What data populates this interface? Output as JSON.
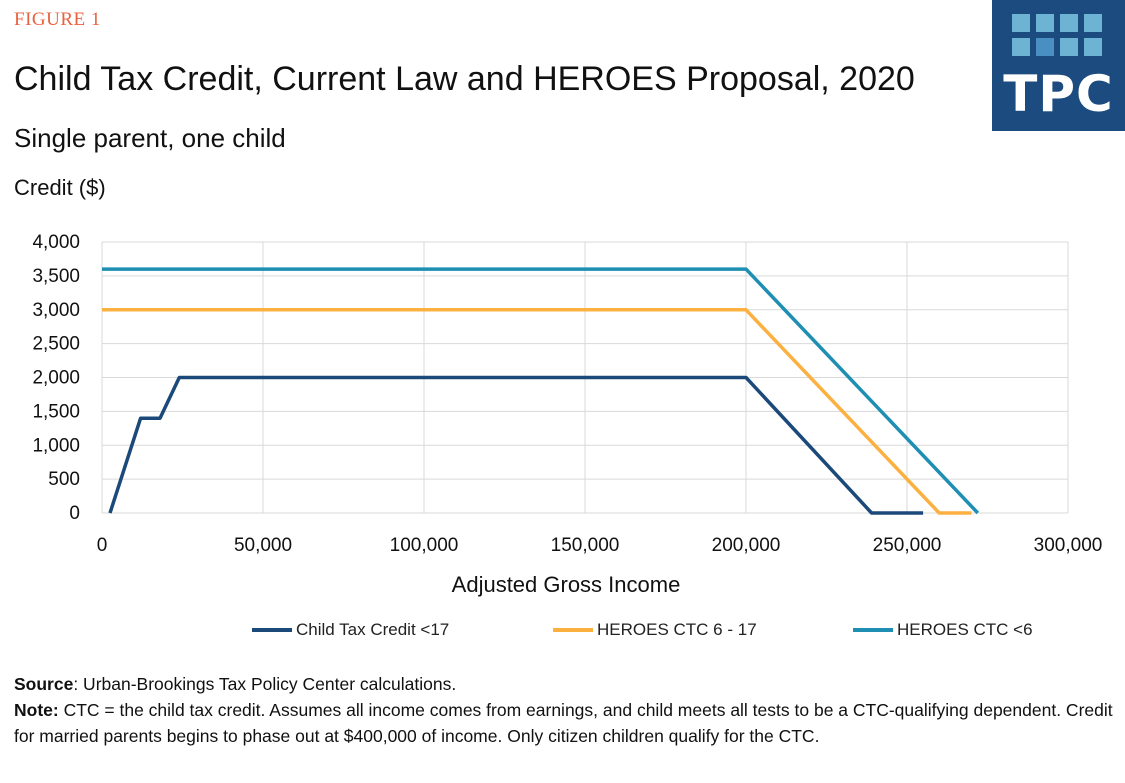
{
  "figure_label": "FIGURE 1",
  "logo": {
    "text": "TPC",
    "colors": {
      "background": "#1c4b80",
      "square_light": "#6cb3d4",
      "square_mid": "#4a8fc1"
    }
  },
  "notes": {
    "source_label": "Source",
    "source_text": ": Urban-Brookings Tax Policy Center calculations.",
    "note_label": "Note:",
    "note_text": " CTC = the child tax credit. Assumes all income comes from earnings, and child meets all tests to be a CTC-qualifying dependent. Credit for married parents begins to phase out at $400,000 of income. Only citizen children qualify for the CTC."
  },
  "chart_data": {
    "type": "line",
    "title": "Child Tax Credit, Current Law and HEROES Proposal, 2020",
    "subtitle": "Single parent, one child",
    "ylabel": "Credit ($)",
    "xlabel": "Adjusted Gross Income",
    "xlim": [
      0,
      300000
    ],
    "ylim": [
      0,
      4000
    ],
    "xticks": [
      0,
      50000,
      100000,
      150000,
      200000,
      250000,
      300000
    ],
    "xtick_labels": [
      "0",
      "50,000",
      "100,000",
      "150,000",
      "200,000",
      "250,000",
      "300,000"
    ],
    "yticks": [
      0,
      500,
      1000,
      1500,
      2000,
      2500,
      3000,
      3500,
      4000
    ],
    "ytick_labels": [
      "0",
      "500",
      "1,000",
      "1,500",
      "2,000",
      "2,500",
      "3,000",
      "3,500",
      "4,000"
    ],
    "grid": true,
    "legend_position": "bottom",
    "series": [
      {
        "name": "Child Tax Credit <17",
        "color": "#1b4a7a",
        "points": [
          [
            2500,
            0
          ],
          [
            12000,
            1400
          ],
          [
            18000,
            1400
          ],
          [
            24000,
            2000
          ],
          [
            200000,
            2000
          ],
          [
            239000,
            0
          ],
          [
            255000,
            0
          ]
        ]
      },
      {
        "name": "HEROES CTC 6 - 17",
        "color": "#fbb040",
        "points": [
          [
            0,
            3000
          ],
          [
            200000,
            3000
          ],
          [
            260000,
            0
          ],
          [
            270000,
            0
          ]
        ]
      },
      {
        "name": "HEROES CTC <6",
        "color": "#1e8fb3",
        "points": [
          [
            0,
            3600
          ],
          [
            200000,
            3600
          ],
          [
            272000,
            0
          ]
        ]
      }
    ]
  }
}
